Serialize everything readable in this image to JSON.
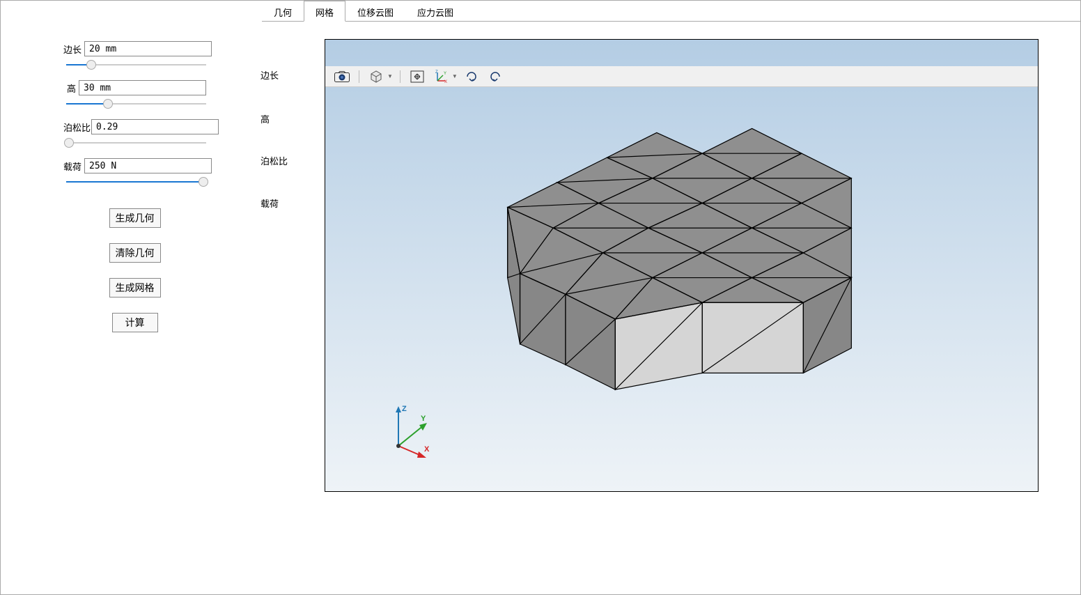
{
  "params": [
    {
      "label": "边长",
      "value": "20 mm",
      "slider_pct": 18
    },
    {
      "label": "高",
      "value": "30 mm",
      "slider_pct": 30
    },
    {
      "label": "泊松比",
      "value": "0.29",
      "slider_pct": 2
    },
    {
      "label": "载荷",
      "value": "250 N",
      "slider_pct": 98
    }
  ],
  "dup_labels": [
    "边长",
    "高",
    "泊松比",
    "载荷"
  ],
  "dup_tops": [
    12,
    75,
    135,
    196
  ],
  "buttons": [
    "生成几何",
    "清除几何",
    "生成网格",
    "计算"
  ],
  "tabs": [
    "几何",
    "网格",
    "位移云图",
    "应力云图"
  ],
  "active_tab": 1,
  "triad": {
    "x": "X",
    "x_color": "#d62728",
    "y": "Y",
    "y_color": "#2ca02c",
    "z": "Z",
    "z_color": "#1f77b4"
  },
  "mesh": {
    "fill_top": "#8f8f8f",
    "fill_side": "#878787",
    "fill_front": "#d5d5d5",
    "stroke": "#000",
    "polys": [
      {
        "p": "220,145 280,115 330,140 275,170",
        "f": "top"
      },
      {
        "p": "280,115 340,85 395,110 330,140",
        "f": "top"
      },
      {
        "p": "340,85 400,55 455,80 395,110",
        "f": "top"
      },
      {
        "p": "395,110 455,80 515,110 455,140",
        "f": "top"
      },
      {
        "p": "455,80 515,50 575,80 515,110",
        "f": "top"
      },
      {
        "p": "515,110 575,80 635,110 575,140",
        "f": "top"
      },
      {
        "p": "330,140 395,110 455,140 390,170",
        "f": "top"
      },
      {
        "p": "455,140 515,110 575,140 515,170",
        "f": "top"
      },
      {
        "p": "275,170 330,140 390,170 335,200",
        "f": "top"
      },
      {
        "p": "390,170 455,140 515,170 455,200",
        "f": "top"
      },
      {
        "p": "515,170 575,140 635,170 577,200",
        "f": "top"
      },
      {
        "p": "575,140 635,110 635,170",
        "f": "top"
      },
      {
        "p": "335,200 390,170 455,200 395,230",
        "f": "top"
      },
      {
        "p": "455,200 515,170 577,200 515,230",
        "f": "top"
      },
      {
        "p": "220,145 275,170 235,225",
        "f": "top"
      },
      {
        "p": "235,225 275,170 335,200 290,250",
        "f": "top"
      },
      {
        "p": "290,250 335,200 395,230 350,280",
        "f": "top"
      },
      {
        "p": "395,230 455,200 515,230 455,260",
        "f": "top"
      },
      {
        "p": "350,280 395,230 455,260",
        "f": "top"
      },
      {
        "p": "455,260 515,230 577,260",
        "f": "top"
      },
      {
        "p": "515,230 577,200 635,230 577,260",
        "f": "top"
      },
      {
        "p": "577,200 635,170 635,230",
        "f": "top"
      },
      {
        "p": "220,145 235,225 235,310 220,230",
        "f": "side"
      },
      {
        "p": "235,225 290,250 290,335 235,310",
        "f": "side"
      },
      {
        "p": "290,250 350,280 350,365 290,335",
        "f": "side"
      },
      {
        "p": "350,280 455,260 455,345 350,365",
        "f": "front"
      },
      {
        "p": "455,260 577,260 577,345 455,345",
        "f": "front"
      },
      {
        "p": "577,260 635,230 635,315 577,345",
        "f": "side"
      }
    ],
    "tris": [
      "220,145 330,140 275,170",
      "280,115 395,110 330,140",
      "340,85 455,80 395,110",
      "395,110 515,110 455,140",
      "455,80 575,80 515,110",
      "515,110 635,110 575,140",
      "330,140 455,140 390,170",
      "455,140 575,140 515,170",
      "275,170 390,170 335,200",
      "390,170 515,170 455,200",
      "515,170 635,170 577,200",
      "335,200 455,200 395,230",
      "455,200 577,200 515,230",
      "235,225 335,200 290,250",
      "290,250 395,230 350,280",
      "395,230 515,230 455,260",
      "515,230 635,230 577,260",
      "220,145 235,225 220,230",
      "235,225 290,250 235,310",
      "290,250 350,280 290,335",
      "350,280 455,260 350,365",
      "455,260 577,260 455,345",
      "577,260 635,230 577,345"
    ]
  }
}
